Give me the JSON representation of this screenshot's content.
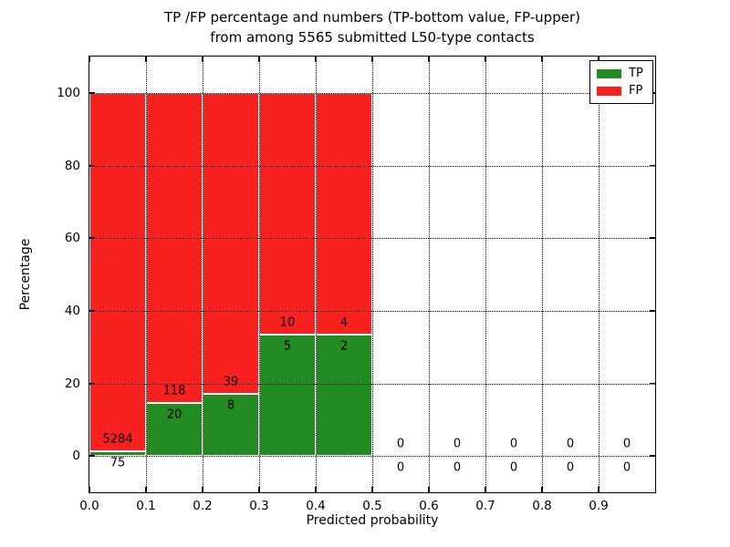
{
  "figure": {
    "background": "#ffffff"
  },
  "chart_data": {
    "type": "bar",
    "variant": "stacked-percentage-histogram",
    "title_lines": [
      "TP /FP percentage and numbers (TP-bottom value, FP-upper)",
      "from among 5565 submitted L50-type contacts"
    ],
    "xlabel": "Predicted probability",
    "ylabel": "Percentage",
    "total_submitted_shown_in_title": 5565,
    "xlim": [
      0.0,
      1.0
    ],
    "ylim": [
      -10,
      110
    ],
    "grid": true,
    "bin_width": 0.1,
    "x_tick_labels": [
      "0.0",
      "0.1",
      "0.2",
      "0.3",
      "0.4",
      "0.5",
      "0.6",
      "0.7",
      "0.8",
      "0.9"
    ],
    "x_tick_values": [
      0.0,
      0.1,
      0.2,
      0.3,
      0.4,
      0.5,
      0.6,
      0.7,
      0.8,
      0.9
    ],
    "y_tick_values": [
      0,
      20,
      40,
      60,
      80,
      100
    ],
    "legend_position": "upper-right",
    "series": [
      {
        "name": "TP",
        "color": "#228b22"
      },
      {
        "name": "FP",
        "color": "#f82120"
      }
    ],
    "bins": [
      {
        "x0": 0.0,
        "tp": 75,
        "fp": 5284
      },
      {
        "x0": 0.1,
        "tp": 20,
        "fp": 118
      },
      {
        "x0": 0.2,
        "tp": 8,
        "fp": 39
      },
      {
        "x0": 0.3,
        "tp": 5,
        "fp": 10
      },
      {
        "x0": 0.4,
        "tp": 2,
        "fp": 4
      },
      {
        "x0": 0.5,
        "tp": 0,
        "fp": 0
      },
      {
        "x0": 0.6,
        "tp": 0,
        "fp": 0
      },
      {
        "x0": 0.7,
        "tp": 0,
        "fp": 0
      },
      {
        "x0": 0.8,
        "tp": 0,
        "fp": 0
      },
      {
        "x0": 0.9,
        "tp": 0,
        "fp": 0
      }
    ]
  }
}
